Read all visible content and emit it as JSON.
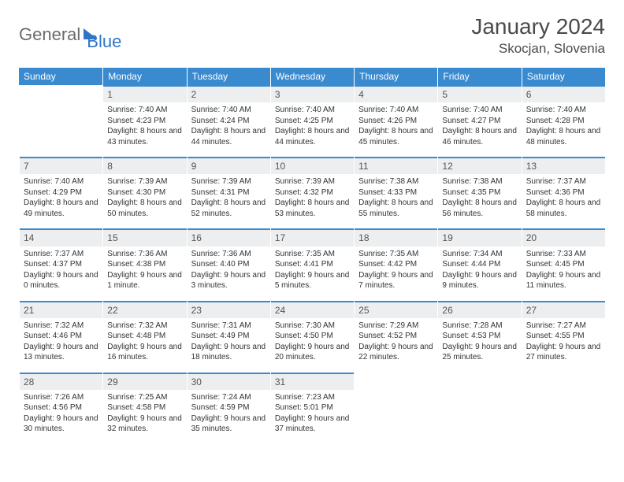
{
  "brand": {
    "word1": "General",
    "word2": "Blue"
  },
  "title": "January 2024",
  "location": "Skocjan, Slovenia",
  "colors": {
    "header_bg": "#3a8ad0",
    "header_text": "#ffffff",
    "daynum_bg": "#eceeef",
    "daynum_border": "#3a8ad0",
    "text": "#333333",
    "brand_gray": "#6b6b6b",
    "brand_blue": "#2e75c8",
    "title_color": "#4a4a4a"
  },
  "weekdays": [
    "Sunday",
    "Monday",
    "Tuesday",
    "Wednesday",
    "Thursday",
    "Friday",
    "Saturday"
  ],
  "start_offset": 1,
  "days": [
    {
      "n": 1,
      "sunrise": "7:40 AM",
      "sunset": "4:23 PM",
      "daylight": "8 hours and 43 minutes."
    },
    {
      "n": 2,
      "sunrise": "7:40 AM",
      "sunset": "4:24 PM",
      "daylight": "8 hours and 44 minutes."
    },
    {
      "n": 3,
      "sunrise": "7:40 AM",
      "sunset": "4:25 PM",
      "daylight": "8 hours and 44 minutes."
    },
    {
      "n": 4,
      "sunrise": "7:40 AM",
      "sunset": "4:26 PM",
      "daylight": "8 hours and 45 minutes."
    },
    {
      "n": 5,
      "sunrise": "7:40 AM",
      "sunset": "4:27 PM",
      "daylight": "8 hours and 46 minutes."
    },
    {
      "n": 6,
      "sunrise": "7:40 AM",
      "sunset": "4:28 PM",
      "daylight": "8 hours and 48 minutes."
    },
    {
      "n": 7,
      "sunrise": "7:40 AM",
      "sunset": "4:29 PM",
      "daylight": "8 hours and 49 minutes."
    },
    {
      "n": 8,
      "sunrise": "7:39 AM",
      "sunset": "4:30 PM",
      "daylight": "8 hours and 50 minutes."
    },
    {
      "n": 9,
      "sunrise": "7:39 AM",
      "sunset": "4:31 PM",
      "daylight": "8 hours and 52 minutes."
    },
    {
      "n": 10,
      "sunrise": "7:39 AM",
      "sunset": "4:32 PM",
      "daylight": "8 hours and 53 minutes."
    },
    {
      "n": 11,
      "sunrise": "7:38 AM",
      "sunset": "4:33 PM",
      "daylight": "8 hours and 55 minutes."
    },
    {
      "n": 12,
      "sunrise": "7:38 AM",
      "sunset": "4:35 PM",
      "daylight": "8 hours and 56 minutes."
    },
    {
      "n": 13,
      "sunrise": "7:37 AM",
      "sunset": "4:36 PM",
      "daylight": "8 hours and 58 minutes."
    },
    {
      "n": 14,
      "sunrise": "7:37 AM",
      "sunset": "4:37 PM",
      "daylight": "9 hours and 0 minutes."
    },
    {
      "n": 15,
      "sunrise": "7:36 AM",
      "sunset": "4:38 PM",
      "daylight": "9 hours and 1 minute."
    },
    {
      "n": 16,
      "sunrise": "7:36 AM",
      "sunset": "4:40 PM",
      "daylight": "9 hours and 3 minutes."
    },
    {
      "n": 17,
      "sunrise": "7:35 AM",
      "sunset": "4:41 PM",
      "daylight": "9 hours and 5 minutes."
    },
    {
      "n": 18,
      "sunrise": "7:35 AM",
      "sunset": "4:42 PM",
      "daylight": "9 hours and 7 minutes."
    },
    {
      "n": 19,
      "sunrise": "7:34 AM",
      "sunset": "4:44 PM",
      "daylight": "9 hours and 9 minutes."
    },
    {
      "n": 20,
      "sunrise": "7:33 AM",
      "sunset": "4:45 PM",
      "daylight": "9 hours and 11 minutes."
    },
    {
      "n": 21,
      "sunrise": "7:32 AM",
      "sunset": "4:46 PM",
      "daylight": "9 hours and 13 minutes."
    },
    {
      "n": 22,
      "sunrise": "7:32 AM",
      "sunset": "4:48 PM",
      "daylight": "9 hours and 16 minutes."
    },
    {
      "n": 23,
      "sunrise": "7:31 AM",
      "sunset": "4:49 PM",
      "daylight": "9 hours and 18 minutes."
    },
    {
      "n": 24,
      "sunrise": "7:30 AM",
      "sunset": "4:50 PM",
      "daylight": "9 hours and 20 minutes."
    },
    {
      "n": 25,
      "sunrise": "7:29 AM",
      "sunset": "4:52 PM",
      "daylight": "9 hours and 22 minutes."
    },
    {
      "n": 26,
      "sunrise": "7:28 AM",
      "sunset": "4:53 PM",
      "daylight": "9 hours and 25 minutes."
    },
    {
      "n": 27,
      "sunrise": "7:27 AM",
      "sunset": "4:55 PM",
      "daylight": "9 hours and 27 minutes."
    },
    {
      "n": 28,
      "sunrise": "7:26 AM",
      "sunset": "4:56 PM",
      "daylight": "9 hours and 30 minutes."
    },
    {
      "n": 29,
      "sunrise": "7:25 AM",
      "sunset": "4:58 PM",
      "daylight": "9 hours and 32 minutes."
    },
    {
      "n": 30,
      "sunrise": "7:24 AM",
      "sunset": "4:59 PM",
      "daylight": "9 hours and 35 minutes."
    },
    {
      "n": 31,
      "sunrise": "7:23 AM",
      "sunset": "5:01 PM",
      "daylight": "9 hours and 37 minutes."
    }
  ],
  "labels": {
    "sunrise": "Sunrise:",
    "sunset": "Sunset:",
    "daylight": "Daylight:"
  }
}
